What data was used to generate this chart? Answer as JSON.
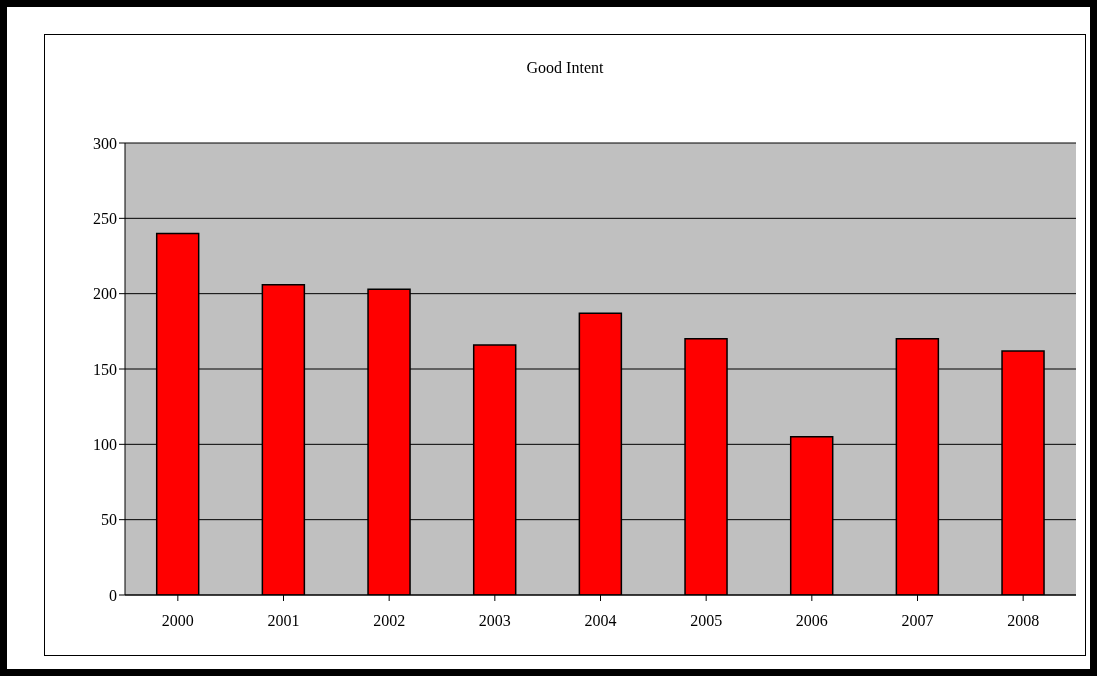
{
  "chart_data": {
    "type": "bar",
    "title": "Good Intent",
    "categories": [
      "2000",
      "2001",
      "2002",
      "2003",
      "2004",
      "2005",
      "2006",
      "2007",
      "2008"
    ],
    "values": [
      240,
      206,
      203,
      166,
      187,
      170,
      105,
      170,
      162
    ],
    "color": "#ff0000",
    "ylim": [
      0,
      300
    ],
    "yticks": [
      0,
      50,
      100,
      150,
      200,
      250,
      300
    ],
    "grid": "y"
  }
}
